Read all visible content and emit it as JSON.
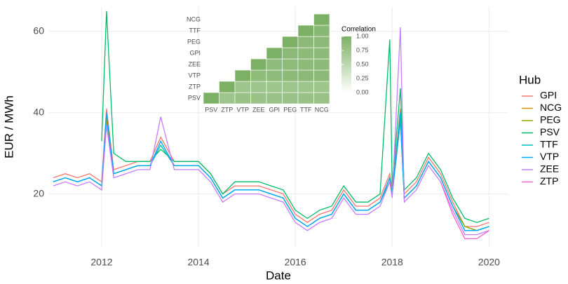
{
  "chart_data": [
    {
      "type": "line",
      "xlabel": "Date",
      "ylabel": "EUR / MWh",
      "legend_title": "Hub",
      "legend": "right",
      "grid": true,
      "x": [
        2011.0,
        2011.25,
        2011.5,
        2011.75,
        2012.0,
        2012.1,
        2012.25,
        2012.5,
        2012.75,
        2013.0,
        2013.22,
        2013.5,
        2013.75,
        2014.0,
        2014.25,
        2014.5,
        2014.75,
        2015.0,
        2015.25,
        2015.5,
        2015.75,
        2016.0,
        2016.25,
        2016.5,
        2016.75,
        2017.0,
        2017.25,
        2017.5,
        2017.75,
        2017.95,
        2018.0,
        2018.17,
        2018.25,
        2018.5,
        2018.75,
        2019.0,
        2019.25,
        2019.5,
        2019.75,
        2020.0
      ],
      "xlim": [
        2010.9,
        2020.4
      ],
      "xticks": [
        2012,
        2014,
        2016,
        2018,
        2020
      ],
      "ylim": [
        7,
        66
      ],
      "yticks": [
        20,
        40,
        60
      ],
      "series": [
        {
          "name": "GPI",
          "color": "#F8766D",
          "values": [
            24,
            25,
            24,
            25,
            23,
            41,
            26,
            27,
            28,
            28,
            34,
            28,
            28,
            28,
            25,
            20,
            22,
            22,
            22,
            21,
            20,
            15,
            13,
            15,
            16,
            21,
            17,
            17,
            19,
            25,
            21,
            41,
            20,
            23,
            29,
            25,
            18,
            12,
            12,
            13
          ]
        },
        {
          "name": "NCG",
          "color": "#CD9600",
          "values": [
            23,
            24,
            23,
            24,
            22,
            38,
            25,
            26,
            27,
            27,
            32,
            27,
            27,
            27,
            24,
            19,
            21,
            21,
            21,
            20,
            19,
            14,
            12,
            14,
            15,
            20,
            16,
            16,
            18,
            24,
            20,
            38,
            19,
            22,
            28,
            24,
            17,
            12,
            11,
            12
          ]
        },
        {
          "name": "PEG",
          "color": "#7CAE00",
          "values": [
            23,
            24,
            23,
            24,
            22,
            39,
            25,
            26,
            27,
            27,
            33,
            27,
            27,
            27,
            24,
            19,
            21,
            21,
            21,
            20,
            19,
            14,
            12,
            14,
            15,
            20,
            16,
            16,
            18,
            24,
            20,
            39,
            19,
            22,
            28,
            24,
            17,
            12,
            11,
            12
          ]
        },
        {
          "name": "PSV",
          "color": "#00BE67",
          "values": [
            null,
            null,
            null,
            null,
            33,
            65,
            30,
            28,
            28,
            28,
            31,
            28,
            28,
            28,
            25,
            20,
            23,
            23,
            23,
            22,
            21,
            16,
            14,
            16,
            17,
            22,
            18,
            18,
            20,
            58,
            22,
            46,
            21,
            24,
            30,
            26,
            19,
            14,
            13,
            14
          ]
        },
        {
          "name": "TTF",
          "color": "#00BFC4",
          "values": [
            23,
            24,
            23,
            24,
            22,
            37,
            25,
            26,
            27,
            27,
            32,
            27,
            27,
            27,
            24,
            19,
            21,
            21,
            21,
            20,
            19,
            14,
            12,
            14,
            15,
            20,
            16,
            16,
            18,
            23,
            20,
            38,
            19,
            22,
            28,
            24,
            17,
            11,
            11,
            12
          ]
        },
        {
          "name": "VTP",
          "color": "#00A9FF",
          "values": [
            23,
            24,
            23,
            24,
            22,
            40,
            25,
            26,
            27,
            27,
            33,
            27,
            27,
            27,
            24,
            19,
            21,
            21,
            21,
            20,
            19,
            14,
            12,
            14,
            15,
            20,
            16,
            16,
            18,
            24,
            20,
            40,
            19,
            22,
            28,
            24,
            17,
            11,
            11,
            12
          ]
        },
        {
          "name": "ZEE",
          "color": "#C77CFF",
          "values": [
            22,
            23,
            22,
            23,
            21,
            37,
            24,
            25,
            26,
            26,
            39,
            26,
            26,
            26,
            23,
            18,
            20,
            20,
            20,
            19,
            18,
            13,
            11,
            13,
            14,
            19,
            15,
            15,
            17,
            23,
            19,
            61,
            18,
            21,
            27,
            23,
            16,
            10,
            10,
            11
          ]
        },
        {
          "name": "ZTP",
          "color": "#FF61CC",
          "values": [
            null,
            null,
            null,
            null,
            null,
            null,
            null,
            null,
            null,
            null,
            null,
            null,
            null,
            null,
            null,
            null,
            null,
            null,
            null,
            null,
            null,
            null,
            null,
            null,
            null,
            null,
            null,
            null,
            null,
            null,
            null,
            null,
            null,
            null,
            null,
            23,
            15,
            9,
            9,
            11
          ]
        }
      ]
    },
    {
      "type": "heatmap",
      "categories": [
        "PSV",
        "ZTP",
        "VTP",
        "ZEE",
        "GPI",
        "PEG",
        "TTF",
        "NCG"
      ],
      "colorbar_title": "Correlation",
      "clim": [
        0,
        1
      ],
      "colorscale": [
        "#ffffff",
        "#7cb064"
      ],
      "cticks": [
        {
          "value": 0,
          "label": "0.00"
        },
        {
          "value": 0.25,
          "label": "0.25"
        },
        {
          "value": 0.5,
          "label": "0.50"
        },
        {
          "value": 0.75,
          "label": "0.75"
        },
        {
          "value": 1,
          "label": "1.00"
        }
      ],
      "z": [
        [
          1,
          0.75,
          0.78,
          0.76,
          0.77,
          0.77,
          0.78,
          0.77
        ],
        [
          null,
          1,
          0.74,
          0.73,
          0.74,
          0.74,
          0.74,
          0.74
        ],
        [
          null,
          null,
          1,
          0.85,
          0.86,
          0.87,
          0.88,
          0.88
        ],
        [
          null,
          null,
          null,
          1,
          0.86,
          0.86,
          0.87,
          0.87
        ],
        [
          null,
          null,
          null,
          null,
          1,
          0.88,
          0.87,
          0.87
        ],
        [
          null,
          null,
          null,
          null,
          null,
          1,
          0.88,
          0.88
        ],
        [
          null,
          null,
          null,
          null,
          null,
          null,
          1,
          0.9
        ],
        [
          null,
          null,
          null,
          null,
          null,
          null,
          null,
          1
        ]
      ]
    }
  ]
}
